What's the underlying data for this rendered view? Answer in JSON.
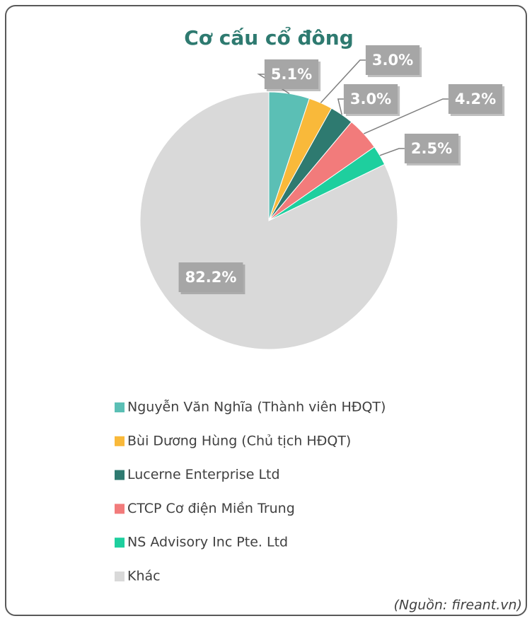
{
  "chart_data": {
    "type": "pie",
    "title": "Cơ cấu cổ đông",
    "categories": [
      "Nguyễn Văn Nghĩa (Thành viên HĐQT)",
      "Bùi Dương Hùng (Chủ tịch HĐQT)",
      "Lucerne Enterprise Ltd",
      "CTCP Cơ điện Miền Trung",
      "NS Advisory Inc Pte. Ltd",
      "Khác"
    ],
    "values": [
      5.1,
      3.0,
      3.0,
      4.2,
      2.5,
      82.2
    ],
    "value_labels": [
      "5.1%",
      "3.0%",
      "3.0%",
      "4.2%",
      "2.5%",
      "82.2%"
    ],
    "colors": [
      "#5bbfb5",
      "#f9b93a",
      "#2e7a70",
      "#f27b7b",
      "#1ecf9e",
      "#d9d9d9"
    ],
    "legend": "bottom",
    "source": "(Nguồn: fireant.vn)"
  }
}
